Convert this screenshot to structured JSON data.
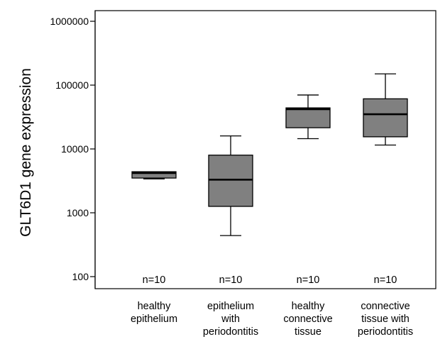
{
  "chart_data": {
    "type": "box",
    "ylabel": "GLT6D1 gene expression",
    "yscale": "log",
    "ylim": [
      100,
      1000000
    ],
    "yticks": [
      {
        "value": 100,
        "label": "100"
      },
      {
        "value": 1000,
        "label": "1000"
      },
      {
        "value": 10000,
        "label": "10000"
      },
      {
        "value": 100000,
        "label": "100000"
      },
      {
        "value": 1000000,
        "label": "1000000"
      }
    ],
    "box_color": "#808080",
    "categories": [
      {
        "label_lines": [
          "healthy",
          "epithelium"
        ],
        "n_label": "n=10",
        "whisker_low": 3400,
        "q1": 3500,
        "median": 4200,
        "q3": 4400,
        "whisker_high": 4400
      },
      {
        "label_lines": [
          "epithelium",
          "with",
          "periodontitis"
        ],
        "n_label": "n=10",
        "whisker_low": 440,
        "q1": 1260,
        "median": 3300,
        "q3": 8000,
        "whisker_high": 16000
      },
      {
        "label_lines": [
          "healthy",
          "connective",
          "tissue"
        ],
        "n_label": "n=10",
        "whisker_low": 14500,
        "q1": 21500,
        "median": 42000,
        "q3": 44000,
        "whisker_high": 70000
      },
      {
        "label_lines": [
          "connective",
          "tissue with",
          "periodontitis"
        ],
        "n_label": "n=10",
        "whisker_low": 11500,
        "q1": 15500,
        "median": 35000,
        "q3": 61000,
        "whisker_high": 150000
      }
    ]
  }
}
